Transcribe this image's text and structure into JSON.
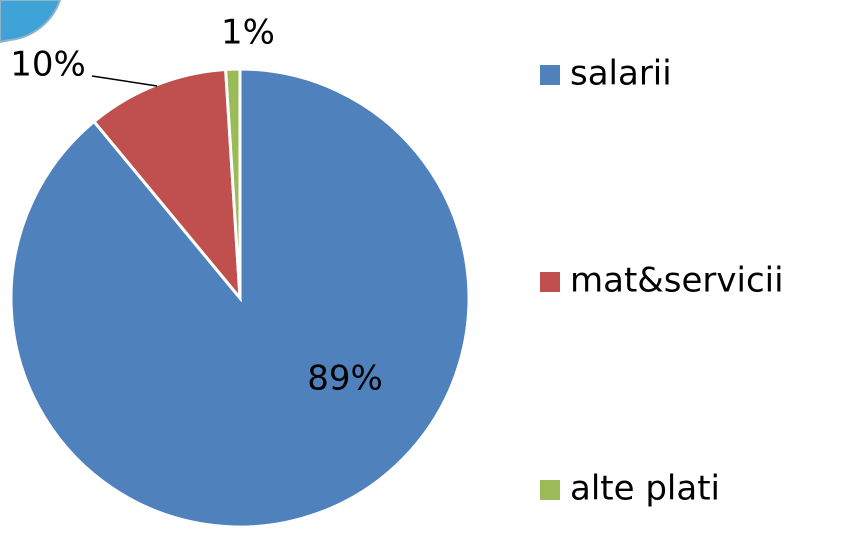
{
  "chart_data": {
    "type": "pie",
    "categories": [
      "salarii",
      "mat&servicii",
      "alte plati"
    ],
    "values": [
      89,
      10,
      1
    ],
    "value_labels": [
      "89%",
      "10%",
      "1%"
    ],
    "colors": [
      "#4f81bd",
      "#c0504d",
      "#9bbb59"
    ],
    "legend": "right"
  }
}
